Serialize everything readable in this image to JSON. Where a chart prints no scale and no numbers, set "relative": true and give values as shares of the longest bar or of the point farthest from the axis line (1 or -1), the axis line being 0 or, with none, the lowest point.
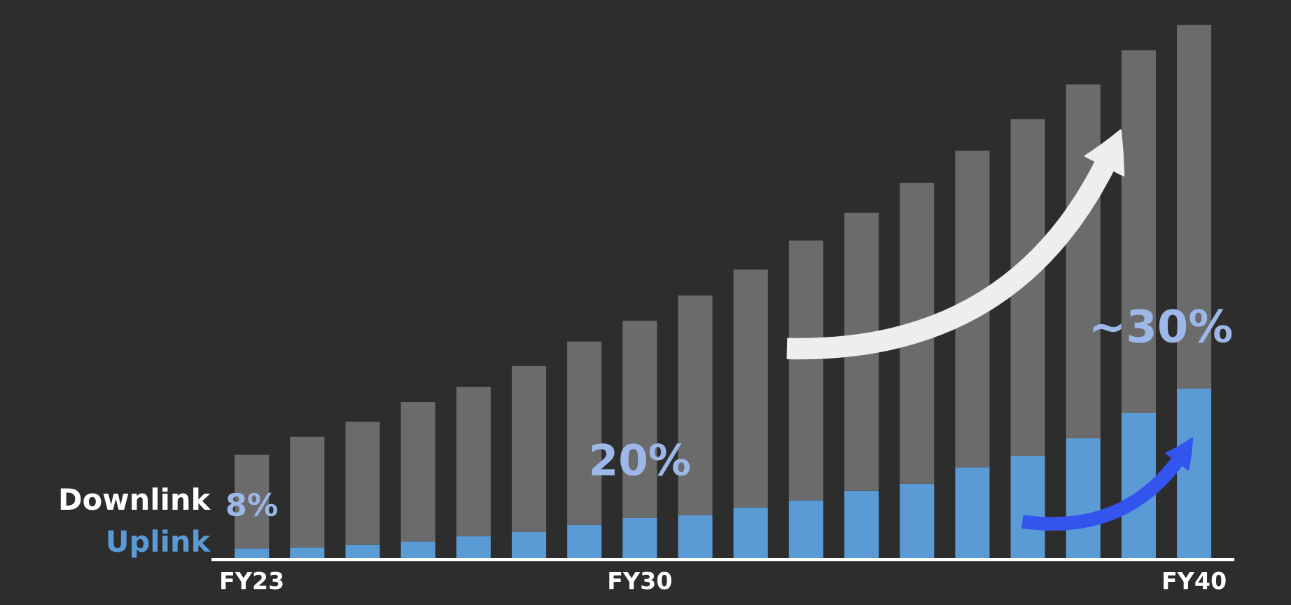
{
  "chart_data": {
    "type": "bar",
    "stacked": true,
    "relative": true,
    "categories": [
      "FY23",
      null,
      null,
      null,
      null,
      null,
      null,
      "FY30",
      null,
      null,
      null,
      null,
      null,
      null,
      null,
      null,
      null,
      "FY40"
    ],
    "series": [
      {
        "name": "Uplink",
        "color": "#5b9bd5",
        "values": [
          0.021,
          0.023,
          0.028,
          0.034,
          0.044,
          0.052,
          0.065,
          0.078,
          0.083,
          0.098,
          0.111,
          0.129,
          0.142,
          0.173,
          0.194,
          0.227,
          0.274,
          0.32
        ]
      },
      {
        "name": "Downlink",
        "color": "#6b6b6b",
        "values": [
          0.175,
          0.207,
          0.23,
          0.261,
          0.279,
          0.31,
          0.343,
          0.369,
          0.411,
          0.445,
          0.486,
          0.52,
          0.563,
          0.592,
          0.63,
          0.662,
          0.679,
          0.68
        ]
      }
    ],
    "annotations": [
      "8%",
      "20%",
      "~30%"
    ]
  }
}
